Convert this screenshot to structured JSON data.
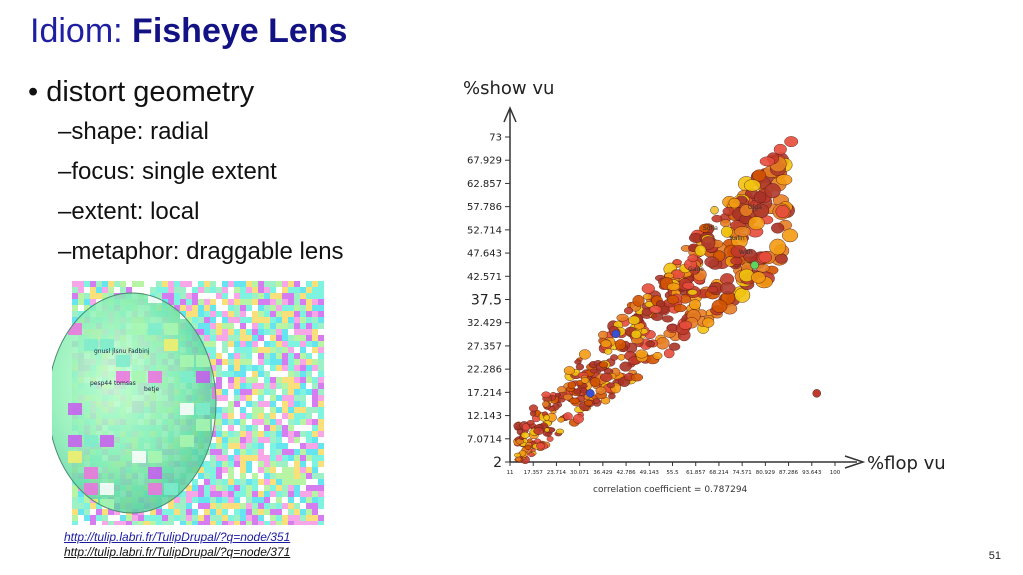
{
  "slide": {
    "title_prefix": "Idiom: ",
    "title_bold": "Fisheye Lens",
    "bullet": "distort geometry",
    "sub_bullets": [
      "shape: radial",
      "focus: single extent",
      "extent: local",
      "metaphor: draggable lens"
    ],
    "fisheye_labels": [
      "gnusl jlsnu Fadbinj",
      "pesp44 tomsas",
      "betje"
    ],
    "links": [
      "http://tulip.labri.fr/TulipDrupal/?q=node/351",
      "http://tulip.labri.fr/TulipDrupal/?q=node/371"
    ],
    "page_number": "51"
  },
  "chart_data": {
    "type": "scatter",
    "xlabel": "%flop vu",
    "ylabel": "%show vu",
    "xticks": [
      "11",
      "17.357",
      "23.714",
      "30.071",
      "36.429",
      "42.786",
      "49.143",
      "55.5",
      "61.857",
      "68.214",
      "74.571",
      "80.929",
      "87.286",
      "93.643",
      "100"
    ],
    "yticks": [
      "2",
      "7.0714",
      "12.143",
      "17.214",
      "22.286",
      "27.357",
      "32.429",
      "37.5",
      "42.571",
      "47.643",
      "52.714",
      "57.786",
      "62.857",
      "67.929",
      "73"
    ],
    "xlim": [
      11,
      100
    ],
    "ylim": [
      2,
      73
    ],
    "annotation": "correlation coefficient = 0.787294",
    "bubble_labels": [
      "Sofia",
      "Kalin",
      "With",
      "Gage",
      "Olga"
    ]
  }
}
